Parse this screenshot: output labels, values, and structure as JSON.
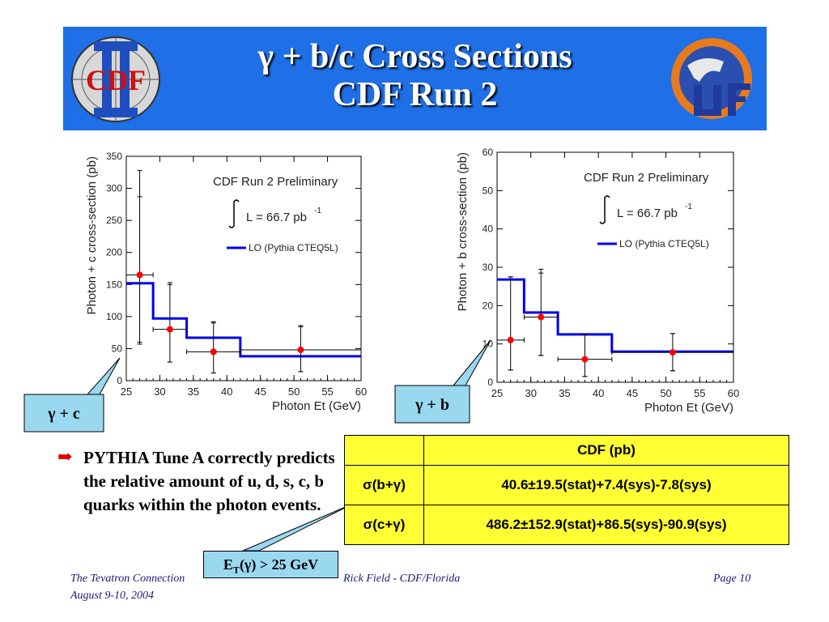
{
  "slide": {
    "title_line1": "γ + b/c Cross Sections",
    "title_line2": "CDF Run 2",
    "left_logo_text": "CDF",
    "bullet_text": "PYTHIA Tune A correctly predicts the relative amount of u, d, s, c, b quarks within the photon events.",
    "callout_c": "γ + c",
    "callout_b": "γ + b",
    "et_cut_prefix": "E",
    "et_cut_sub": "T",
    "et_cut_suffix": "(γ) > 25 GeV",
    "footer_left_line1": "The Tevatron Connection",
    "footer_left_line2": "August 9-10, 2004",
    "footer_center": "Rick Field - CDF/Florida",
    "footer_right": "Page 10",
    "accent_blue": "#1f6fe6",
    "table_yellow": "#ffff33",
    "data_red": "#ff0000",
    "lo_blue": "#0000ee"
  },
  "table": {
    "header": "CDF  (pb)",
    "rows": [
      {
        "label": "σ(b+γ)",
        "value": "40.6±19.5(stat)+7.4(sys)-7.8(sys)"
      },
      {
        "label": "σ(c+γ)",
        "value": "486.2±152.9(stat)+86.5(sys)-90.9(sys)"
      }
    ]
  },
  "chart_data": [
    {
      "type": "line",
      "title": "CDF Run 2 Preliminary",
      "luminosity": "L = 66.7 pb",
      "luminosity_exp": "-1",
      "xlabel": "Photon Et (GeV)",
      "ylabel": "Photon + c cross-section (pb)",
      "xlim": [
        25,
        60
      ],
      "ylim": [
        0,
        350
      ],
      "xticks": [
        25,
        30,
        35,
        40,
        45,
        50,
        55,
        60
      ],
      "yticks": [
        0,
        50,
        100,
        150,
        200,
        250,
        300,
        350
      ],
      "legend": "LO (Pythia CTEQ5L)",
      "bins": [
        [
          25,
          29
        ],
        [
          29,
          34
        ],
        [
          34,
          42
        ],
        [
          42,
          60
        ]
      ],
      "lo_values": [
        152,
        97,
        67,
        38
      ],
      "points": [
        {
          "x": 27,
          "xerr": [
            25,
            29
          ],
          "y": 165,
          "stat": [
            60,
            287
          ],
          "tot": [
            57,
            328
          ]
        },
        {
          "x": 31.5,
          "xerr": [
            29,
            34
          ],
          "y": 80,
          "stat": [
            29,
            150
          ],
          "tot": [
            29,
            153
          ]
        },
        {
          "x": 38,
          "xerr": [
            34,
            42
          ],
          "y": 45,
          "stat": [
            12,
            90
          ],
          "tot": [
            12,
            92
          ]
        },
        {
          "x": 51,
          "xerr": [
            42,
            60
          ],
          "y": 48,
          "stat": [
            14,
            84
          ],
          "tot": [
            14,
            86
          ]
        }
      ]
    },
    {
      "type": "line",
      "title": "CDF Run 2 Preliminary",
      "luminosity": "L = 66.7 pb",
      "luminosity_exp": "-1",
      "xlabel": "Photon Et (GeV)",
      "ylabel": "Photon + b cross-section (pb)",
      "xlim": [
        25,
        60
      ],
      "ylim": [
        0,
        60
      ],
      "xticks": [
        25,
        30,
        35,
        40,
        45,
        50,
        55,
        60
      ],
      "yticks": [
        0,
        10,
        20,
        30,
        40,
        50,
        60
      ],
      "legend": "LO (Pythia CTEQ5L)",
      "bins": [
        [
          25,
          29
        ],
        [
          29,
          34
        ],
        [
          34,
          42
        ],
        [
          42,
          60
        ]
      ],
      "lo_values": [
        26.8,
        18.2,
        12.5,
        8.0
      ],
      "points": [
        {
          "x": 27,
          "xerr": [
            25,
            29
          ],
          "y": 11,
          "stat": [
            3.2,
            27.5
          ],
          "tot": [
            3.2,
            27.5
          ]
        },
        {
          "x": 31.5,
          "xerr": [
            29,
            34
          ],
          "y": 17,
          "stat": [
            7,
            28.5
          ],
          "tot": [
            7,
            29.5
          ]
        },
        {
          "x": 38,
          "xerr": [
            34,
            42
          ],
          "y": 6,
          "stat": [
            1.5,
            12.5
          ],
          "tot": [
            1.5,
            12.5
          ]
        },
        {
          "x": 51,
          "xerr": [
            42,
            60
          ],
          "y": 7.8,
          "stat": [
            3,
            12.7
          ],
          "tot": [
            3,
            12.7
          ]
        }
      ]
    }
  ]
}
